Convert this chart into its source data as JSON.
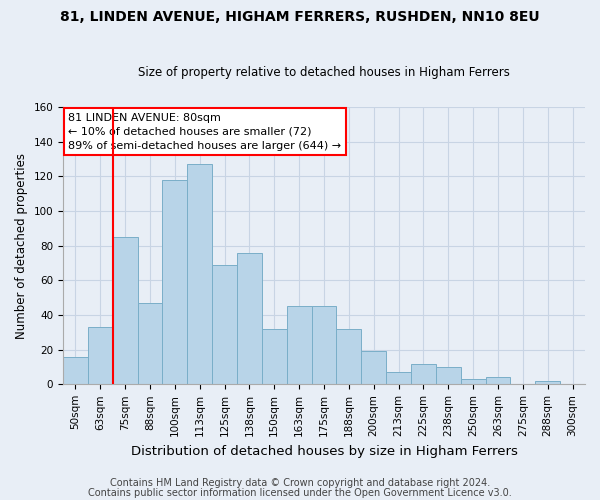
{
  "title": "81, LINDEN AVENUE, HIGHAM FERRERS, RUSHDEN, NN10 8EU",
  "subtitle": "Size of property relative to detached houses in Higham Ferrers",
  "xlabel": "Distribution of detached houses by size in Higham Ferrers",
  "ylabel": "Number of detached properties",
  "footnote1": "Contains HM Land Registry data © Crown copyright and database right 2024.",
  "footnote2": "Contains public sector information licensed under the Open Government Licence v3.0.",
  "bar_labels": [
    "50sqm",
    "63sqm",
    "75sqm",
    "88sqm",
    "100sqm",
    "113sqm",
    "125sqm",
    "138sqm",
    "150sqm",
    "163sqm",
    "175sqm",
    "188sqm",
    "200sqm",
    "213sqm",
    "225sqm",
    "238sqm",
    "250sqm",
    "263sqm",
    "275sqm",
    "288sqm",
    "300sqm"
  ],
  "bar_values": [
    16,
    33,
    85,
    47,
    118,
    127,
    69,
    76,
    32,
    45,
    45,
    32,
    19,
    7,
    12,
    10,
    3,
    4,
    0,
    2,
    0
  ],
  "bar_color": "#b8d4e8",
  "bar_edge_color": "#7aaec8",
  "vline_x_index": 2,
  "vline_color": "red",
  "annotation_title": "81 LINDEN AVENUE: 80sqm",
  "annotation_line1": "← 10% of detached houses are smaller (72)",
  "annotation_line2": "89% of semi-detached houses are larger (644) →",
  "annotation_box_color": "white",
  "annotation_box_edge_color": "red",
  "ylim": [
    0,
    160
  ],
  "yticks": [
    0,
    20,
    40,
    60,
    80,
    100,
    120,
    140,
    160
  ],
  "grid_color": "#c8d4e4",
  "bg_color": "#e8eef6",
  "title_fontsize": 10,
  "subtitle_fontsize": 8.5,
  "xlabel_fontsize": 9.5,
  "ylabel_fontsize": 8.5,
  "tick_fontsize": 7.5,
  "footnote_fontsize": 7
}
